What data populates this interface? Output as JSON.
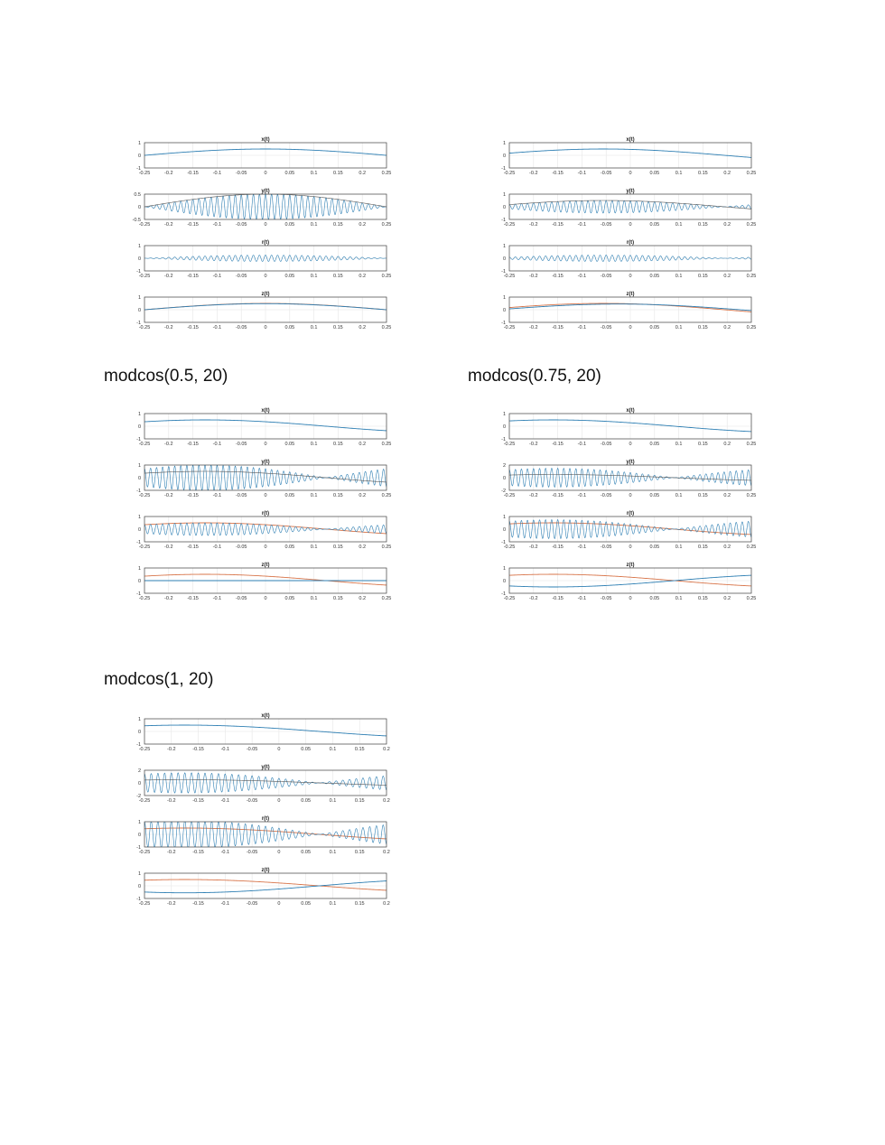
{
  "captions": {
    "c1": "modcos(0.5, 20)",
    "c2": "modcos(0.75, 20)",
    "c3": "modcos(1, 20)"
  },
  "colors": {
    "blue": "#2e7fb3",
    "orange": "#d8754a",
    "grid": "#e6e6e6",
    "axis": "#444444",
    "envelope": "#555555"
  },
  "chart_data": [
    {
      "type": "line",
      "panel": "top-left",
      "title": "",
      "subplots": [
        {
          "title": "x(t)",
          "xlim": [
            -0.25,
            0.25
          ],
          "ylim": [
            -1,
            1
          ],
          "yticks": [
            "1",
            "0",
            "-1"
          ],
          "series": [
            {
              "name": "x",
              "kind": "cos",
              "amp": 0.5,
              "freq": 1,
              "phase": 0
            }
          ]
        },
        {
          "title": "y(t)",
          "xlim": [
            -0.25,
            0.25
          ],
          "ylim": [
            -0.5,
            0.5
          ],
          "yticks": [
            "0.5",
            "0",
            "-0.5"
          ],
          "series": [
            {
              "name": "y",
              "kind": "am",
              "amp": 0.5,
              "freq": 1,
              "phase": 0,
              "carrier": 80,
              "envelope": true
            }
          ]
        },
        {
          "title": "r(t)",
          "xlim": [
            -0.25,
            0.25
          ],
          "ylim": [
            -1,
            1
          ],
          "yticks": [
            "1",
            "0",
            "-1"
          ],
          "series": [
            {
              "name": "r",
              "kind": "am",
              "amp": 0.25,
              "freq": 1,
              "phase": 0,
              "carrier": 80,
              "bias": 0.25
            }
          ]
        },
        {
          "title": "z(t)",
          "xlim": [
            -0.25,
            0.25
          ],
          "ylim": [
            -1,
            1
          ],
          "yticks": [
            "1",
            "0",
            "-1"
          ],
          "series": [
            {
              "name": "x",
              "kind": "cos",
              "amp": 0.5,
              "freq": 1,
              "phase": 0,
              "color": "orange"
            },
            {
              "name": "z",
              "kind": "cos",
              "amp": 0.48,
              "freq": 1,
              "phase": 0,
              "color": "blue"
            }
          ]
        }
      ],
      "xticks": [
        "-0.25",
        "-0.2",
        "-0.15",
        "-0.1",
        "-0.05",
        "0",
        "0.05",
        "0.1",
        "0.15",
        "0.2",
        "0.25"
      ]
    },
    {
      "type": "line",
      "panel": "top-right",
      "title": "",
      "subplots": [
        {
          "title": "x(t)",
          "xlim": [
            -0.25,
            0.25
          ],
          "ylim": [
            -1,
            1
          ],
          "yticks": [
            "1",
            "0",
            "-1"
          ],
          "series": [
            {
              "name": "x",
              "kind": "cos",
              "amp": 0.5,
              "freq": 1,
              "phase": 0.35
            }
          ]
        },
        {
          "title": "y(t)",
          "xlim": [
            -0.25,
            0.25
          ],
          "ylim": [
            -1,
            1
          ],
          "yticks": [
            "1",
            "0",
            "-1"
          ],
          "series": [
            {
              "name": "y",
              "kind": "am",
              "amp": 0.5,
              "freq": 1,
              "phase": 0.35,
              "carrier": 80,
              "envelope": true
            }
          ]
        },
        {
          "title": "r(t)",
          "xlim": [
            -0.25,
            0.25
          ],
          "ylim": [
            -1,
            1
          ],
          "yticks": [
            "1",
            "0",
            "-1"
          ],
          "series": [
            {
              "name": "r",
              "kind": "am",
              "amp": 0.25,
              "freq": 1,
              "phase": 0.35,
              "carrier": 80,
              "bias": 0.25
            }
          ]
        },
        {
          "title": "z(t)",
          "xlim": [
            -0.25,
            0.25
          ],
          "ylim": [
            -1,
            1
          ],
          "yticks": [
            "1",
            "0",
            "-1"
          ],
          "series": [
            {
              "name": "x",
              "kind": "cos",
              "amp": 0.5,
              "freq": 1,
              "phase": 0.35,
              "color": "orange"
            },
            {
              "name": "z",
              "kind": "cos",
              "amp": 0.45,
              "freq": 1,
              "phase": 0.15,
              "color": "blue"
            }
          ]
        }
      ],
      "xticks": [
        "-0.25",
        "-0.2",
        "-0.15",
        "-0.1",
        "-0.05",
        "0",
        "0.05",
        "0.1",
        "0.15",
        "0.2",
        "0.25"
      ]
    },
    {
      "type": "line",
      "panel": "middle-left",
      "title": "modcos(0.5, 20)",
      "subplots": [
        {
          "title": "x(t)",
          "xlim": [
            -0.25,
            0.25
          ],
          "ylim": [
            -1,
            1
          ],
          "yticks": [
            "1",
            "0",
            "-1"
          ],
          "series": [
            {
              "name": "x",
              "kind": "cos",
              "amp": 0.5,
              "freq": 1,
              "phase": 0.785
            }
          ]
        },
        {
          "title": "y(t)",
          "xlim": [
            -0.25,
            0.25
          ],
          "ylim": [
            -1,
            1
          ],
          "yticks": [
            "1",
            "0",
            "-1"
          ],
          "series": [
            {
              "name": "y",
              "kind": "am",
              "amp": 1,
              "freq": 1,
              "phase": 0.785,
              "carrier": 80,
              "envelope": true,
              "envamp": 0.5
            }
          ]
        },
        {
          "title": "r(t)",
          "xlim": [
            -0.25,
            0.25
          ],
          "ylim": [
            -1,
            1
          ],
          "yticks": [
            "1",
            "0",
            "-1"
          ],
          "series": [
            {
              "name": "x",
              "kind": "cos",
              "amp": 0.5,
              "freq": 1,
              "phase": 0.785,
              "color": "orange"
            },
            {
              "name": "r",
              "kind": "am",
              "amp": 0.5,
              "freq": 1,
              "phase": 0.785,
              "carrier": 80
            }
          ]
        },
        {
          "title": "z(t)",
          "xlim": [
            -0.25,
            0.25
          ],
          "ylim": [
            -1,
            1
          ],
          "yticks": [
            "1",
            "0",
            "-1"
          ],
          "series": [
            {
              "name": "x",
              "kind": "cos",
              "amp": 0.5,
              "freq": 1,
              "phase": 0.785,
              "color": "orange"
            },
            {
              "name": "z",
              "kind": "const",
              "value": 0,
              "color": "blue"
            }
          ]
        }
      ],
      "xticks": [
        "-0.25",
        "-0.2",
        "-0.15",
        "-0.1",
        "-0.05",
        "0",
        "0.05",
        "0.1",
        "0.15",
        "0.2",
        "0.25"
      ]
    },
    {
      "type": "line",
      "panel": "middle-right",
      "title": "modcos(0.75, 20)",
      "subplots": [
        {
          "title": "x(t)",
          "xlim": [
            -0.25,
            0.25
          ],
          "ylim": [
            -1,
            1
          ],
          "yticks": [
            "1",
            "0",
            "-1"
          ],
          "series": [
            {
              "name": "x",
              "kind": "cos",
              "amp": 0.5,
              "freq": 1,
              "phase": 1.0
            }
          ]
        },
        {
          "title": "y(t)",
          "xlim": [
            -0.25,
            0.25
          ],
          "ylim": [
            -2,
            2
          ],
          "yticks": [
            "2",
            "0",
            "-2"
          ],
          "series": [
            {
              "name": "y",
              "kind": "am",
              "amp": 1.5,
              "freq": 1,
              "phase": 1.0,
              "carrier": 80,
              "envelope": true,
              "envamp": 0.5
            }
          ]
        },
        {
          "title": "r(t)",
          "xlim": [
            -0.25,
            0.25
          ],
          "ylim": [
            -1,
            1
          ],
          "yticks": [
            "1",
            "0",
            "-1"
          ],
          "series": [
            {
              "name": "x",
              "kind": "cos",
              "amp": 0.5,
              "freq": 1,
              "phase": 1.0,
              "color": "orange"
            },
            {
              "name": "r",
              "kind": "am",
              "amp": 0.75,
              "freq": 1,
              "phase": 1.0,
              "carrier": 80
            }
          ]
        },
        {
          "title": "z(t)",
          "xlim": [
            -0.25,
            0.25
          ],
          "ylim": [
            -1,
            1
          ],
          "yticks": [
            "1",
            "0",
            "-1"
          ],
          "series": [
            {
              "name": "x",
              "kind": "cos",
              "amp": 0.5,
              "freq": 1,
              "phase": 1.0,
              "color": "orange"
            },
            {
              "name": "z",
              "kind": "cos",
              "amp": -0.5,
              "freq": 1,
              "phase": 1.0,
              "color": "blue"
            }
          ]
        }
      ],
      "xticks": [
        "-0.25",
        "-0.2",
        "-0.15",
        "-0.1",
        "-0.05",
        "0",
        "0.05",
        "0.1",
        "0.15",
        "0.2",
        "0.25"
      ]
    },
    {
      "type": "line",
      "panel": "bottom-left",
      "title": "modcos(1, 20)",
      "subplots": [
        {
          "title": "x(t)",
          "xlim": [
            -0.25,
            0.2
          ],
          "ylim": [
            -1,
            1
          ],
          "yticks": [
            "1",
            "0",
            "-1"
          ],
          "series": [
            {
              "name": "x",
              "kind": "cos",
              "amp": 0.5,
              "freq": 1,
              "phase": 1.1
            }
          ]
        },
        {
          "title": "y(t)",
          "xlim": [
            -0.25,
            0.2
          ],
          "ylim": [
            -2,
            2
          ],
          "yticks": [
            "2",
            "0",
            "-2"
          ],
          "series": [
            {
              "name": "y",
              "kind": "am",
              "amp": 1.6,
              "freq": 1,
              "phase": 1.1,
              "carrier": 80,
              "envelope": true,
              "envamp": 0.5
            }
          ]
        },
        {
          "title": "r(t)",
          "xlim": [
            -0.25,
            0.2
          ],
          "ylim": [
            -1,
            1
          ],
          "yticks": [
            "1",
            "0",
            "-1"
          ],
          "series": [
            {
              "name": "x",
              "kind": "cos",
              "amp": 0.5,
              "freq": 1,
              "phase": 1.1,
              "color": "orange"
            },
            {
              "name": "r",
              "kind": "am",
              "amp": 1.1,
              "freq": 1,
              "phase": 1.1,
              "carrier": 80,
              "clip": 1
            }
          ]
        },
        {
          "title": "z(t)",
          "xlim": [
            -0.25,
            0.2
          ],
          "ylim": [
            -1,
            1
          ],
          "yticks": [
            "1",
            "0",
            "-1"
          ],
          "series": [
            {
              "name": "x",
              "kind": "cos",
              "amp": 0.5,
              "freq": 1,
              "phase": 1.1,
              "color": "orange"
            },
            {
              "name": "z",
              "kind": "cos",
              "amp": -0.55,
              "freq": 1,
              "phase": 1.1,
              "color": "blue"
            }
          ]
        }
      ],
      "xticks": [
        "-0.25",
        "-0.2",
        "-0.15",
        "-0.1",
        "-0.05",
        "0",
        "0.05",
        "0.1",
        "0.15",
        "0.2"
      ]
    }
  ]
}
